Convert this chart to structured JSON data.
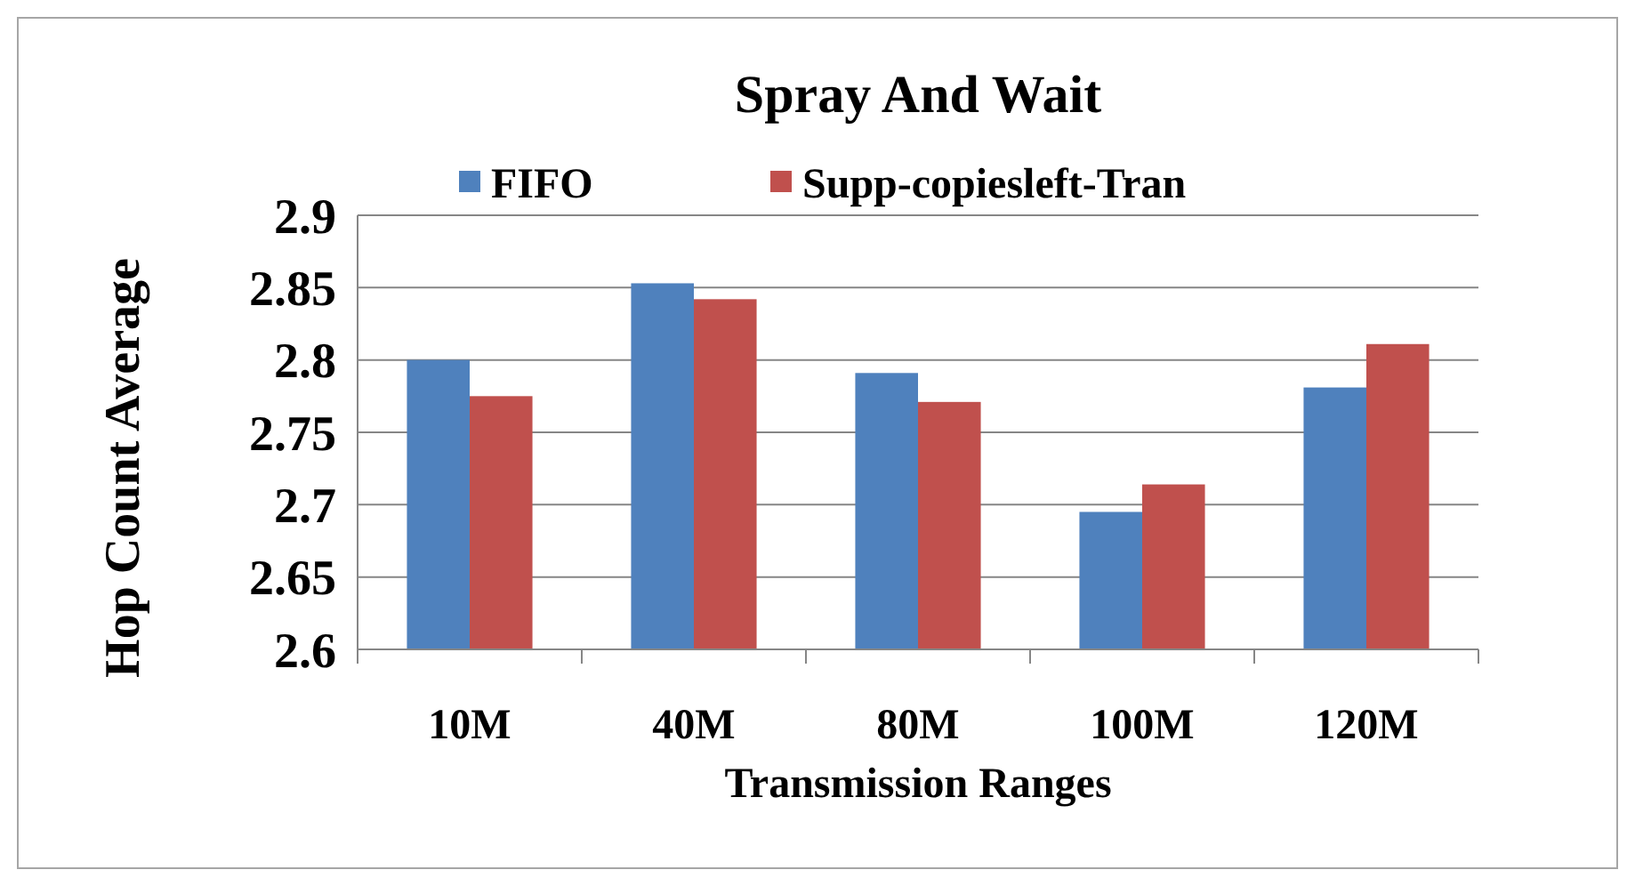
{
  "chart_data": {
    "type": "bar",
    "title": "Spray And Wait",
    "xlabel": "Transmission Ranges",
    "ylabel": "Hop Count Average",
    "categories": [
      "10M",
      "40M",
      "80M",
      "100M",
      "120M"
    ],
    "series": [
      {
        "name": "FIFO",
        "color": "#4f81bd",
        "values": [
          2.8,
          2.853,
          2.791,
          2.695,
          2.781
        ]
      },
      {
        "name": "Supp-copiesleft-Tran",
        "color": "#c0504d",
        "values": [
          2.775,
          2.842,
          2.771,
          2.714,
          2.811
        ]
      }
    ],
    "ylim": [
      2.6,
      2.9
    ],
    "yticks": [
      2.6,
      2.65,
      2.7,
      2.75,
      2.8,
      2.85,
      2.9
    ],
    "grid": "y",
    "legend": "top"
  }
}
